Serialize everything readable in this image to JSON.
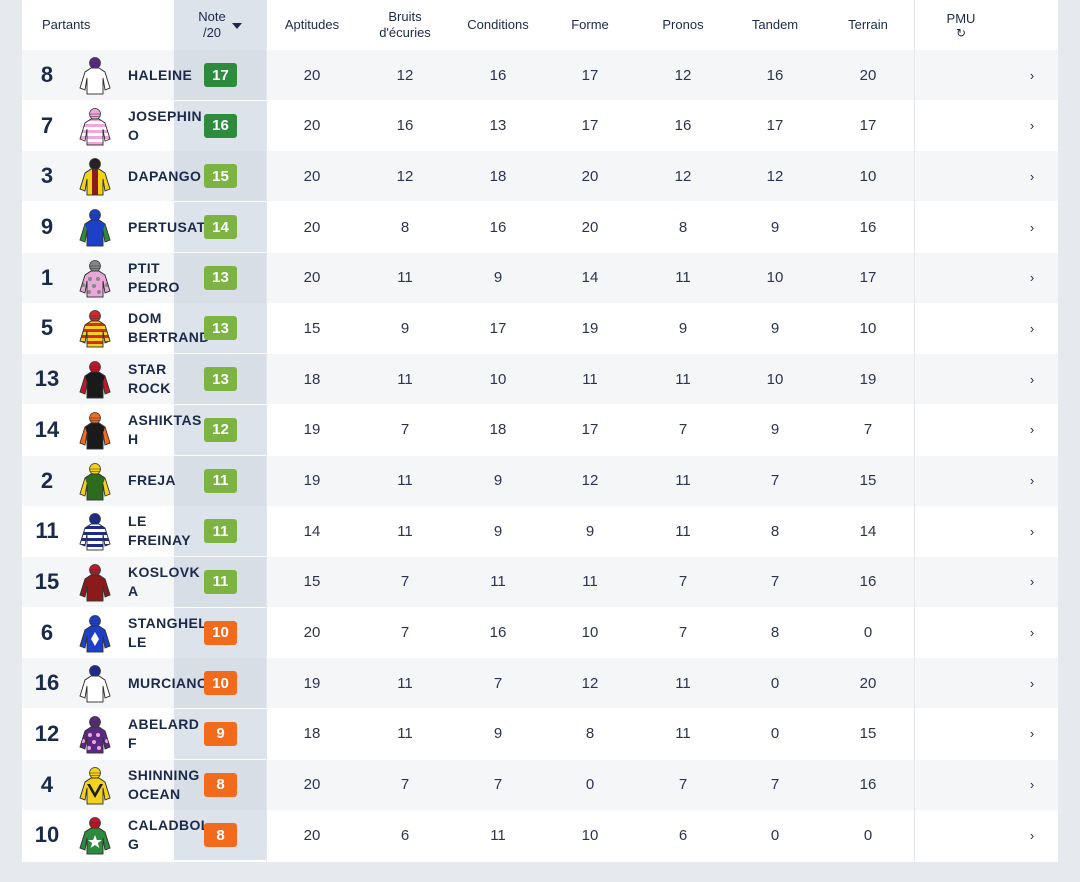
{
  "header": {
    "partants": "Partants",
    "note": "Note",
    "note_sub": "/20",
    "aptitudes": "Aptitudes",
    "bruits": "Bruits",
    "bruits_sub": "d'écuries",
    "conditions": "Conditions",
    "forme": "Forme",
    "pronos": "Pronos",
    "tandem": "Tandem",
    "terrain": "Terrain",
    "pmu": "PMU",
    "pmu_icon": "refresh-icon"
  },
  "colors": {
    "dark_green": "#2e8b3e",
    "light_green": "#7cb342",
    "orange": "#f26b1d"
  },
  "rows": [
    {
      "num": "8",
      "name": "HALEINE",
      "note": "17",
      "note_color": "dark_green",
      "aptitudes": "20",
      "bruits": "12",
      "conditions": "16",
      "forme": "17",
      "pronos": "12",
      "tandem": "16",
      "terrain": "20",
      "silk": {
        "body": "#ffffff",
        "pattern": "plain",
        "accent": "#ffffff",
        "cap": "#5a2a82"
      }
    },
    {
      "num": "7",
      "name": "JOSEPHINO",
      "note": "16",
      "note_color": "dark_green",
      "aptitudes": "20",
      "bruits": "16",
      "conditions": "13",
      "forme": "17",
      "pronos": "16",
      "tandem": "17",
      "terrain": "17",
      "silk": {
        "body": "#f0a8dc",
        "pattern": "hoops",
        "accent": "#ffffff",
        "cap": "#f0a8dc"
      }
    },
    {
      "num": "3",
      "name": "DAPANGO",
      "note": "15",
      "note_color": "light_green",
      "aptitudes": "20",
      "bruits": "12",
      "conditions": "18",
      "forme": "20",
      "pronos": "12",
      "tandem": "12",
      "terrain": "10",
      "silk": {
        "body": "#f2d21b",
        "pattern": "stripe",
        "accent": "#8b1a1a",
        "cap": "#222222"
      }
    },
    {
      "num": "9",
      "name": "PERTUSATI",
      "note": "14",
      "note_color": "light_green",
      "aptitudes": "20",
      "bruits": "8",
      "conditions": "16",
      "forme": "20",
      "pronos": "8",
      "tandem": "9",
      "terrain": "16",
      "silk": {
        "body": "#1e3fc8",
        "pattern": "sleeves",
        "accent": "#2e8b3e",
        "cap": "#1e3fc8"
      }
    },
    {
      "num": "1",
      "name": "PTIT PEDRO",
      "note": "13",
      "note_color": "light_green",
      "aptitudes": "20",
      "bruits": "11",
      "conditions": "9",
      "forme": "14",
      "pronos": "11",
      "tandem": "10",
      "terrain": "17",
      "silk": {
        "body": "#e8a8d8",
        "pattern": "spots",
        "accent": "#888888",
        "cap": "#888888"
      }
    },
    {
      "num": "5",
      "name": "DOM BERTRAND",
      "note": "13",
      "note_color": "light_green",
      "aptitudes": "15",
      "bruits": "9",
      "conditions": "17",
      "forme": "19",
      "pronos": "9",
      "tandem": "9",
      "terrain": "10",
      "silk": {
        "body": "#f2d21b",
        "pattern": "hoops",
        "accent": "#d62a2a",
        "cap": "#d62a2a"
      }
    },
    {
      "num": "13",
      "name": "STAR ROCK",
      "note": "13",
      "note_color": "light_green",
      "aptitudes": "18",
      "bruits": "11",
      "conditions": "10",
      "forme": "11",
      "pronos": "11",
      "tandem": "10",
      "terrain": "19",
      "silk": {
        "body": "#1a1a1a",
        "pattern": "sleeves",
        "accent": "#c0182a",
        "cap": "#c0182a"
      }
    },
    {
      "num": "14",
      "name": "ASHIKTASH",
      "note": "12",
      "note_color": "light_green",
      "aptitudes": "19",
      "bruits": "7",
      "conditions": "18",
      "forme": "17",
      "pronos": "7",
      "tandem": "9",
      "terrain": "7",
      "silk": {
        "body": "#1a1a1a",
        "pattern": "sleeves",
        "accent": "#f26b1d",
        "cap": "#f26b1d"
      }
    },
    {
      "num": "2",
      "name": "FREJA",
      "note": "11",
      "note_color": "light_green",
      "aptitudes": "19",
      "bruits": "11",
      "conditions": "9",
      "forme": "12",
      "pronos": "11",
      "tandem": "7",
      "terrain": "15",
      "silk": {
        "body": "#2e6b1f",
        "pattern": "sleeves",
        "accent": "#f2d21b",
        "cap": "#f2d21b"
      }
    },
    {
      "num": "11",
      "name": "LE FREINAY",
      "note": "11",
      "note_color": "light_green",
      "aptitudes": "14",
      "bruits": "11",
      "conditions": "9",
      "forme": "9",
      "pronos": "11",
      "tandem": "8",
      "terrain": "14",
      "silk": {
        "body": "#ffffff",
        "pattern": "hoops",
        "accent": "#1e2a8a",
        "cap": "#1e2a8a"
      }
    },
    {
      "num": "15",
      "name": "KOSLOVKA",
      "note": "11",
      "note_color": "light_green",
      "aptitudes": "15",
      "bruits": "7",
      "conditions": "11",
      "forme": "11",
      "pronos": "7",
      "tandem": "7",
      "terrain": "16",
      "silk": {
        "body": "#8b1a1a",
        "pattern": "plain",
        "accent": "#8b1a1a",
        "cap": "#c0182a"
      }
    },
    {
      "num": "6",
      "name": "STANGHELLE",
      "note": "10",
      "note_color": "orange",
      "aptitudes": "20",
      "bruits": "7",
      "conditions": "16",
      "forme": "10",
      "pronos": "7",
      "tandem": "8",
      "terrain": "0",
      "silk": {
        "body": "#1e3fc8",
        "pattern": "diamond",
        "accent": "#ffffff",
        "cap": "#1e3fc8"
      }
    },
    {
      "num": "16",
      "name": "MURCIANO",
      "note": "10",
      "note_color": "orange",
      "aptitudes": "19",
      "bruits": "11",
      "conditions": "7",
      "forme": "12",
      "pronos": "11",
      "tandem": "0",
      "terrain": "20",
      "silk": {
        "body": "#ffffff",
        "pattern": "plain",
        "accent": "#ffffff",
        "cap": "#1e2a8a"
      }
    },
    {
      "num": "12",
      "name": "ABELARD F",
      "note": "9",
      "note_color": "orange",
      "aptitudes": "18",
      "bruits": "11",
      "conditions": "9",
      "forme": "8",
      "pronos": "11",
      "tandem": "0",
      "terrain": "15",
      "silk": {
        "body": "#5a2a82",
        "pattern": "spots",
        "accent": "#f0a8dc",
        "cap": "#5a2a82"
      }
    },
    {
      "num": "4",
      "name": "SHINNING OCEAN",
      "note": "8",
      "note_color": "orange",
      "aptitudes": "20",
      "bruits": "7",
      "conditions": "7",
      "forme": "0",
      "pronos": "7",
      "tandem": "7",
      "terrain": "16",
      "silk": {
        "body": "#f2d21b",
        "pattern": "chevron",
        "accent": "#1a1a1a",
        "cap": "#f2d21b"
      }
    },
    {
      "num": "10",
      "name": "CALADBOLG",
      "note": "8",
      "note_color": "orange",
      "aptitudes": "20",
      "bruits": "6",
      "conditions": "11",
      "forme": "10",
      "pronos": "6",
      "tandem": "0",
      "terrain": "0",
      "silk": {
        "body": "#2e8b3e",
        "pattern": "star",
        "accent": "#ffffff",
        "cap": "#c0182a"
      }
    }
  ]
}
